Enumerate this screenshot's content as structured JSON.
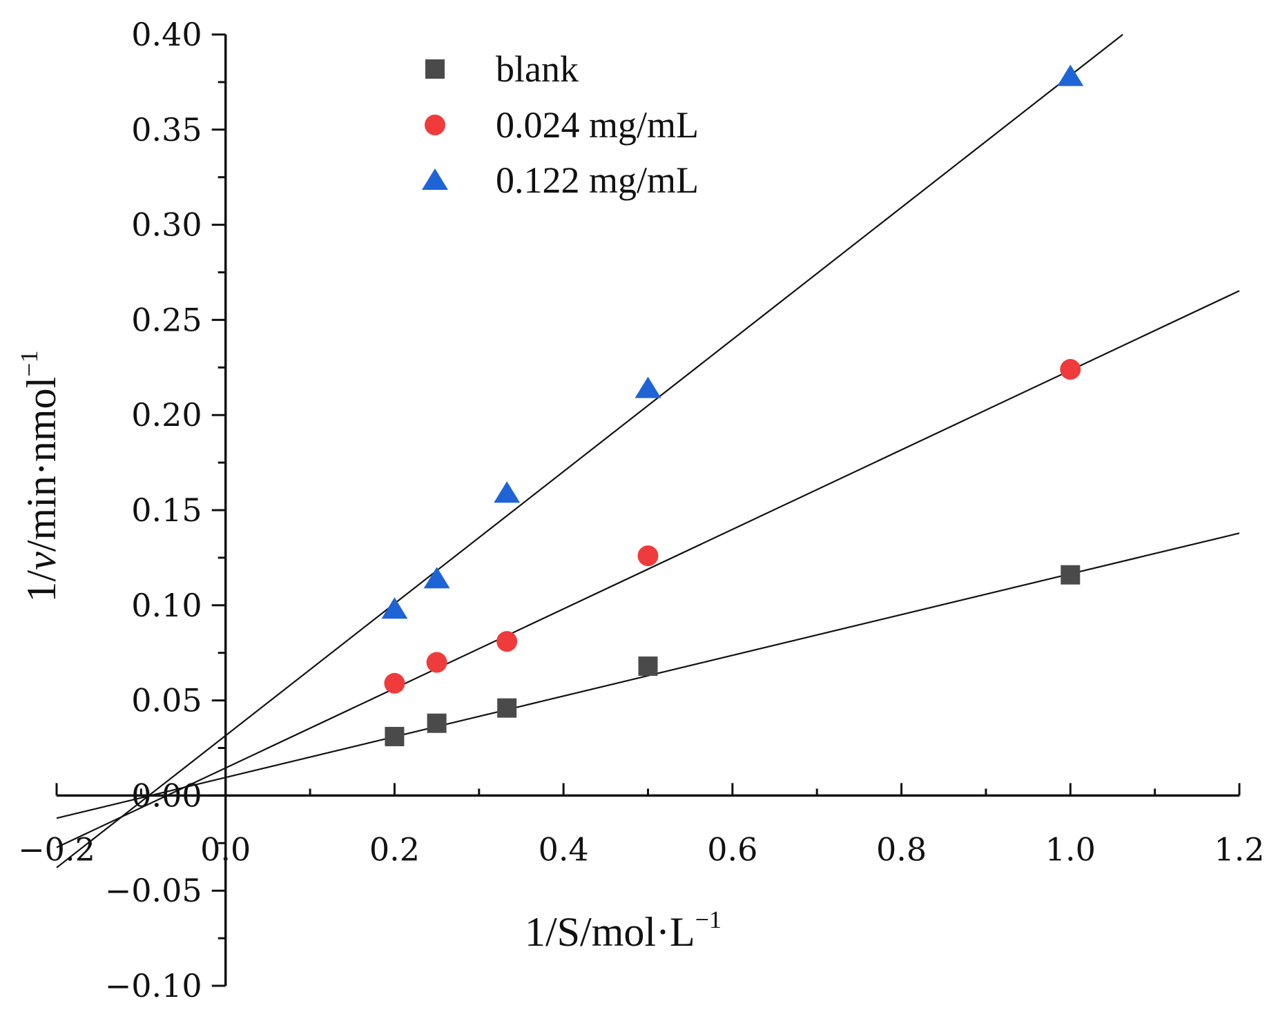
{
  "chart_data": {
    "type": "scatter",
    "title": "",
    "xlabel_parts": [
      "1/S/mol·L",
      "−1"
    ],
    "ylabel_parts": [
      "1/",
      "v",
      "/min·nmol",
      "−1"
    ],
    "xlim": [
      -0.2,
      1.2
    ],
    "ylim": [
      -0.1,
      0.4
    ],
    "x_major_ticks": [
      -0.2,
      0.0,
      0.2,
      0.4,
      0.6,
      0.8,
      1.0,
      1.2
    ],
    "x_tick_labels": [
      "−0.2",
      "0.0",
      "0.2",
      "0.4",
      "0.6",
      "0.8",
      "1.0",
      "1.2"
    ],
    "y_major_ticks": [
      -0.1,
      -0.05,
      0.0,
      0.05,
      0.1,
      0.15,
      0.2,
      0.25,
      0.3,
      0.35,
      0.4
    ],
    "y_tick_labels": [
      "−0.10",
      "−0.05",
      "0.00",
      "0.05",
      "0.10",
      "0.15",
      "0.20",
      "0.25",
      "0.30",
      "0.35",
      "0.40"
    ],
    "legend_position": "top-center",
    "series": [
      {
        "name": "blank",
        "marker": "square",
        "color": "#4a4a4a",
        "x": [
          0.2,
          0.25,
          0.333,
          0.5,
          1.0
        ],
        "y": [
          0.031,
          0.038,
          0.046,
          0.068,
          0.116
        ],
        "fit": {
          "slope": 0.107,
          "intercept": 0.0095,
          "x_range": [
            -0.2,
            1.2
          ]
        }
      },
      {
        "name": "0.024 mg/mL",
        "marker": "circle",
        "color": "#ef3b3b",
        "x": [
          0.2,
          0.25,
          0.333,
          0.5,
          1.0
        ],
        "y": [
          0.059,
          0.07,
          0.081,
          0.126,
          0.224
        ],
        "fit": {
          "slope": 0.209,
          "intercept": 0.0145,
          "x_range": [
            -0.2,
            1.2
          ]
        }
      },
      {
        "name": "0.122 mg/mL",
        "marker": "triangle",
        "color": "#1e64d6",
        "x": [
          0.2,
          0.25,
          0.333,
          0.5,
          1.0
        ],
        "y": [
          0.098,
          0.114,
          0.159,
          0.214,
          0.378
        ],
        "fit": {
          "slope": 0.347,
          "intercept": 0.0315,
          "x_range": [
            -0.2,
            1.062
          ]
        }
      }
    ]
  }
}
